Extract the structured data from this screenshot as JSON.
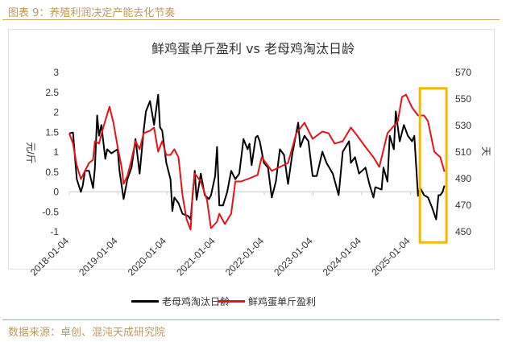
{
  "header": {
    "figure_title": "图表 9：养殖利润决定产能去化节奏"
  },
  "footer": {
    "source": "数据来源：卓创、混沌天成研究院"
  },
  "colors": {
    "accent_gold": "#c09a5b",
    "highlight_box": "#f5b800",
    "black_series": "#000000",
    "red_series": "#e8121a"
  },
  "chart_data": {
    "type": "line",
    "title": "鲜鸡蛋单斤盈利 vs 老母鸡淘汰日龄",
    "ylabel_left": "元/斤",
    "ylabel_right": "天",
    "ylim_left": [
      -1,
      3
    ],
    "ylim_right": [
      450,
      570
    ],
    "yticks_left": [
      "3",
      "2.5",
      "2",
      "1.5",
      "1",
      "0.5",
      "0",
      "-0.5",
      "-1"
    ],
    "yticks_right": [
      "570",
      "550",
      "530",
      "510",
      "490",
      "470",
      "450"
    ],
    "xticks": [
      "2018-01-04",
      "2019-01-04",
      "2020-01-04",
      "2021-01-04",
      "2022-01-04",
      "2023-01-04",
      "2024-01-04",
      "2025-01-04"
    ],
    "grid": false,
    "zero_line": true,
    "legend_placement": "bottom",
    "highlight": {
      "from": "2025-03-15",
      "to": "2025-09-30",
      "ymin_right": 442,
      "ymax_right": 558
    },
    "series": [
      {
        "name": "老母鸡淘汰日龄",
        "color": "#000000",
        "axis": "left",
        "x": [
          "2018-01-04",
          "2018-02-01",
          "2018-03-01",
          "2018-04-01",
          "2018-04-15",
          "2018-05-01",
          "2018-06-01",
          "2018-07-01",
          "2018-07-15",
          "2018-08-01",
          "2018-08-15",
          "2018-09-01",
          "2018-10-01",
          "2018-10-15",
          "2018-11-15",
          "2019-01-01",
          "2019-01-15",
          "2019-02-15",
          "2019-03-15",
          "2019-04-15",
          "2019-05-15",
          "2019-06-15",
          "2019-07-15",
          "2019-08-01",
          "2019-09-01",
          "2019-10-01",
          "2019-11-01",
          "2019-11-15",
          "2019-12-01",
          "2020-01-01",
          "2020-02-01",
          "2020-02-15",
          "2020-03-01",
          "2020-04-01",
          "2020-05-01",
          "2020-06-15",
          "2020-07-01",
          "2020-08-01",
          "2020-08-15",
          "2020-09-15",
          "2020-10-15",
          "2020-11-15",
          "2020-12-01",
          "2021-01-01",
          "2021-01-15",
          "2021-02-01",
          "2021-03-01",
          "2021-04-01",
          "2021-05-01",
          "2021-06-01",
          "2021-07-01",
          "2021-08-01",
          "2021-09-01",
          "2021-09-15",
          "2021-10-01",
          "2021-11-01",
          "2021-11-15",
          "2021-12-01",
          "2022-01-01",
          "2022-02-01",
          "2022-03-01",
          "2022-04-01",
          "2022-05-01",
          "2022-06-01",
          "2022-07-01",
          "2022-08-01",
          "2022-09-15",
          "2022-10-01",
          "2022-11-01",
          "2022-12-01",
          "2023-01-01",
          "2023-02-01",
          "2023-03-15",
          "2023-04-15",
          "2023-06-01",
          "2023-07-15",
          "2023-08-15",
          "2023-10-01",
          "2023-10-15",
          "2023-11-15",
          "2023-12-15",
          "2024-02-01",
          "2024-03-01",
          "2024-04-01",
          "2024-04-15",
          "2024-06-01",
          "2024-06-15",
          "2024-07-15",
          "2024-08-01",
          "2024-09-01",
          "2024-09-15",
          "2024-10-15",
          "2024-11-15",
          "2024-12-15",
          "2025-01-15",
          "2025-02-01",
          "2025-03-01",
          "2025-03-15",
          "2025-04-15",
          "2025-05-15",
          "2025-06-15",
          "2025-07-15",
          "2025-08-01",
          "2025-08-15",
          "2025-09-01",
          "2025-09-15"
        ],
        "values": [
          1.47,
          1.49,
          0.32,
          0.0,
          0.16,
          0.53,
          0.53,
          0.1,
          0.61,
          1.92,
          1.41,
          1.68,
          0.83,
          1.07,
          0.97,
          1.07,
          0.53,
          -0.18,
          0.32,
          0.61,
          1.33,
          0.46,
          1.54,
          2.02,
          2.28,
          1.68,
          2.44,
          1.62,
          1.54,
          0.73,
          0.32,
          -0.48,
          -0.14,
          -0.28,
          -0.55,
          -0.61,
          -0.69,
          0.53,
          -0.2,
          0.46,
          -0.08,
          -0.18,
          -0.08,
          0.4,
          1.13,
          -0.34,
          -0.34,
          0.0,
          0.53,
          0.32,
          0.46,
          1.33,
          1.07,
          1.21,
          0.67,
          1.37,
          1.41,
          1.27,
          0.73,
          0.61,
          -0.14,
          0.26,
          1.07,
          0.93,
          0.2,
          0.93,
          1.74,
          1.13,
          1.41,
          1.27,
          0.4,
          0.4,
          1.01,
          0.73,
          0.46,
          -0.08,
          1.01,
          1.27,
          0.73,
          0.87,
          0.46,
          0.61,
          0.2,
          -0.14,
          0.12,
          0.06,
          0.61,
          0.26,
          1.41,
          1.07,
          2.02,
          1.27,
          1.68,
          1.41,
          1.27,
          1.41,
          -0.1,
          0.12,
          -0.08,
          -0.14,
          -0.4,
          -0.69,
          -0.08,
          -0.08,
          0.0,
          0.16
        ]
      },
      {
        "name": "鲜鸡蛋单斤盈利",
        "color": "#e8121a",
        "axis": "right",
        "x": [
          "2018-01-04",
          "2018-02-01",
          "2018-03-01",
          "2018-04-01",
          "2018-05-01",
          "2018-06-01",
          "2018-07-01",
          "2018-07-15",
          "2018-08-15",
          "2018-09-15",
          "2018-11-01",
          "2018-12-01",
          "2019-01-01",
          "2019-02-01",
          "2019-02-15",
          "2019-03-15",
          "2019-04-15",
          "2019-05-15",
          "2019-06-15",
          "2019-07-15",
          "2019-09-01",
          "2019-10-01",
          "2019-11-01",
          "2019-12-01",
          "2020-01-01",
          "2020-02-01",
          "2020-03-01",
          "2020-04-01",
          "2020-05-01",
          "2020-06-01",
          "2020-07-01",
          "2020-07-15",
          "2020-08-01",
          "2020-09-15",
          "2020-11-01",
          "2020-12-01",
          "2021-01-15",
          "2021-02-01",
          "2021-03-15",
          "2021-05-01",
          "2021-06-01",
          "2021-07-15",
          "2021-09-01",
          "2021-11-15",
          "2021-12-15",
          "2022-03-01",
          "2022-05-01",
          "2022-07-01",
          "2022-09-01",
          "2022-11-01",
          "2023-01-01",
          "2023-03-15",
          "2023-05-01",
          "2023-06-15",
          "2023-08-15",
          "2023-10-15",
          "2023-12-01",
          "2024-02-01",
          "2024-04-01",
          "2024-05-15",
          "2024-07-15",
          "2024-10-01",
          "2024-11-01",
          "2024-12-01",
          "2025-01-15",
          "2025-03-01",
          "2025-04-15",
          "2025-05-15",
          "2025-07-01",
          "2025-08-15",
          "2025-09-15"
        ],
        "values": [
          524.2,
          516.4,
          500.0,
          489.7,
          495.8,
          501.8,
          504.2,
          518.2,
          516.4,
          528.5,
          544.2,
          532.1,
          513.9,
          498.2,
          486.1,
          492.1,
          504.2,
          518.2,
          512.1,
          524.2,
          526.1,
          528.5,
          510.3,
          518.2,
          507.9,
          507.9,
          512.1,
          506.1,
          477.6,
          459.4,
          451.5,
          477.6,
          493.9,
          487.9,
          473.9,
          452.7,
          457.6,
          463.6,
          455.8,
          463.6,
          487.9,
          487.9,
          489.7,
          492.7,
          506.1,
          495.8,
          498.8,
          501.8,
          524.2,
          532.1,
          520.0,
          525.5,
          524.2,
          516.4,
          518.2,
          528.5,
          522.4,
          513.9,
          506.1,
          498.8,
          524.2,
          533.3,
          551.5,
          553.3,
          543.6,
          537.6,
          537.6,
          533.3,
          510.3,
          506.1,
          495.2
        ]
      }
    ]
  }
}
